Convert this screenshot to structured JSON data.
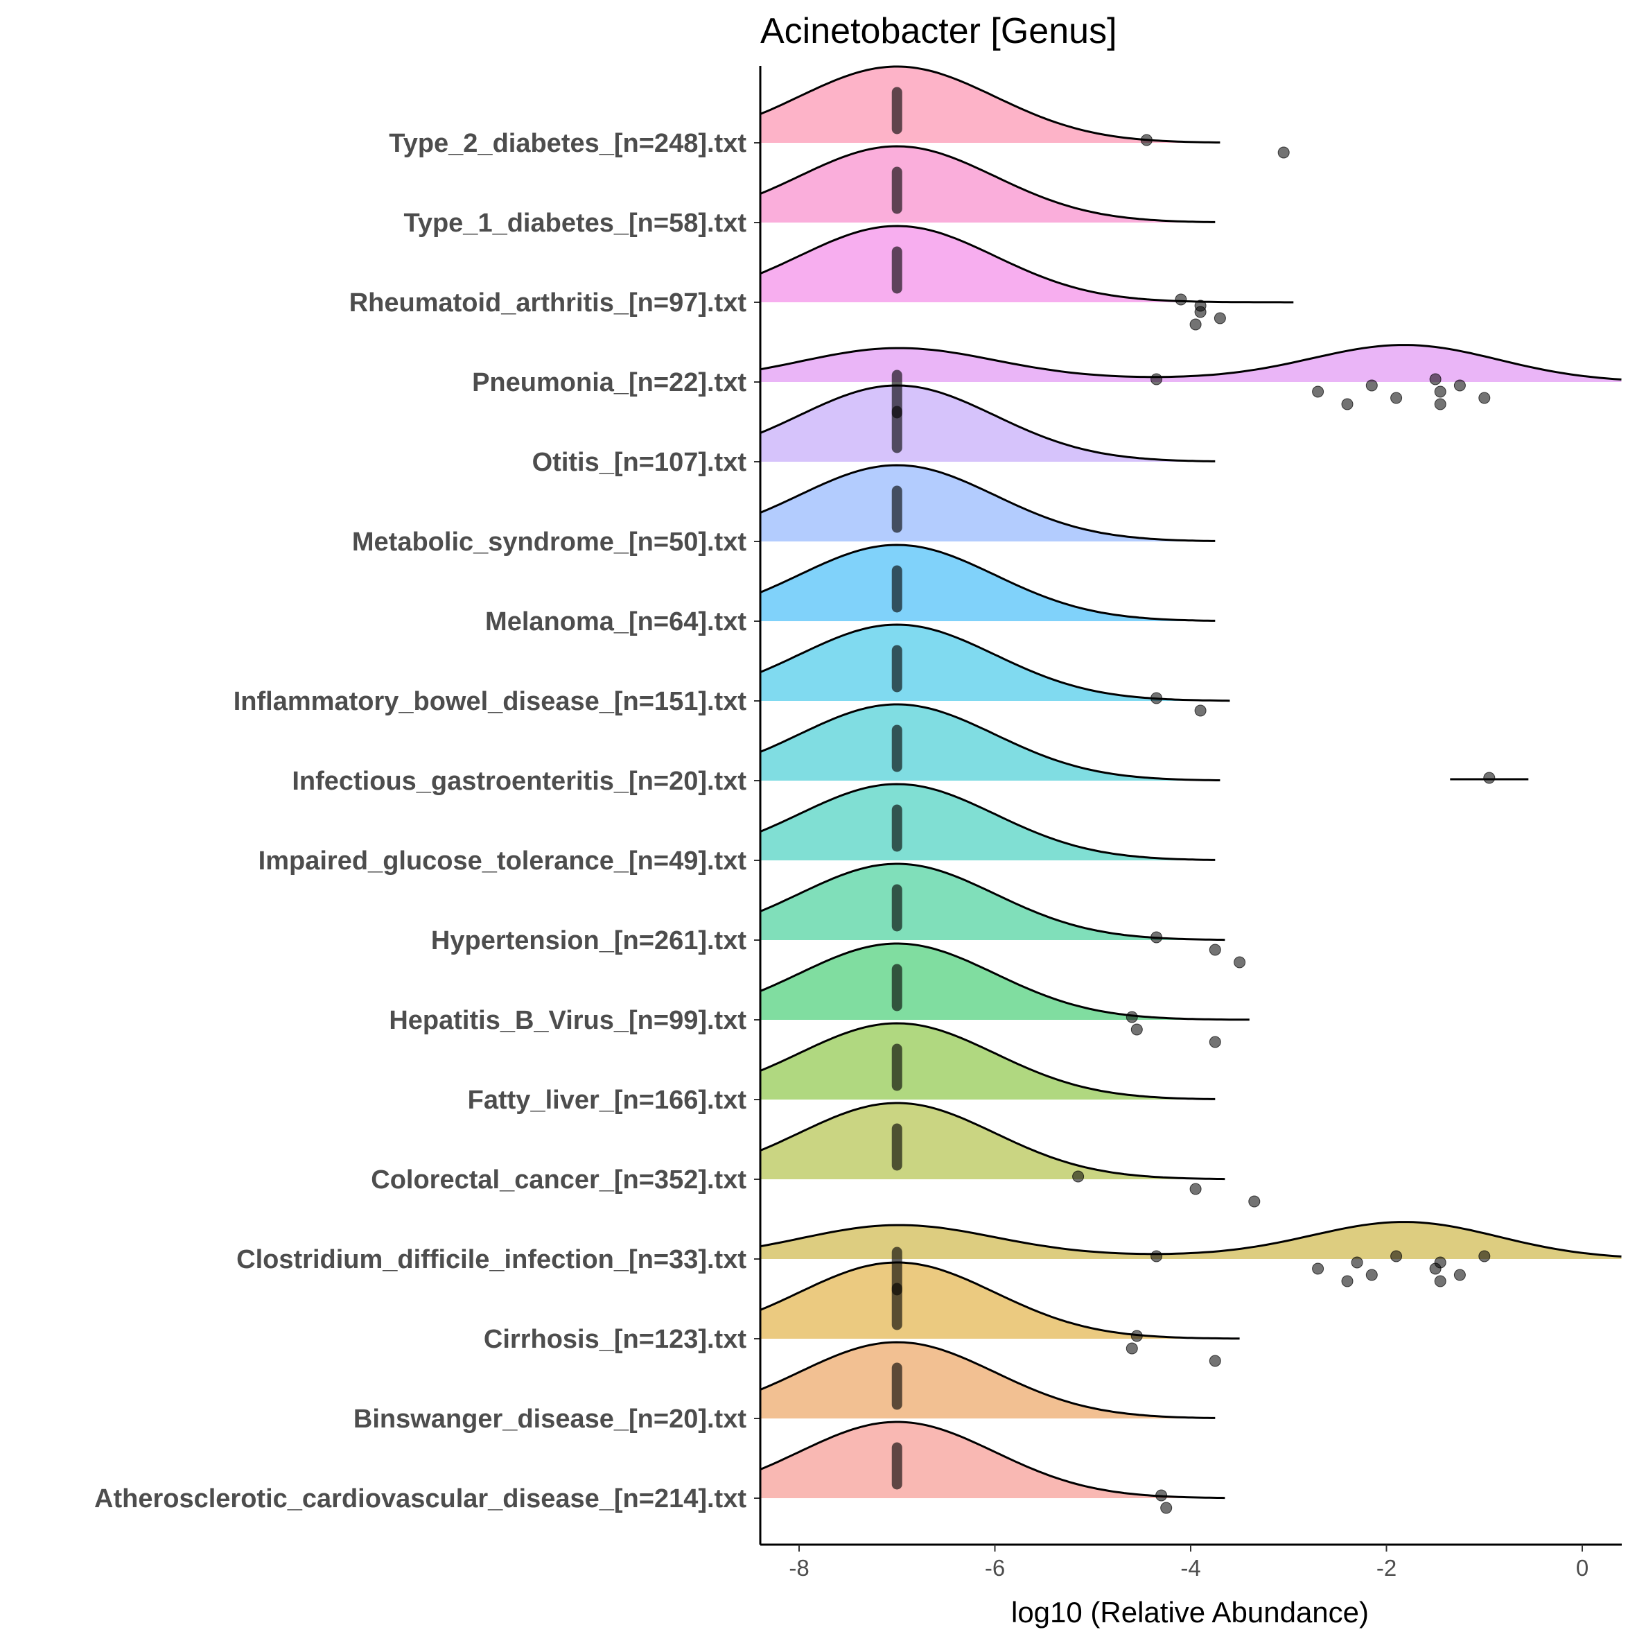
{
  "chart_data": {
    "type": "raincloud",
    "title": "Acinetobacter [Genus]",
    "xlabel": "log10 (Relative Abundance)",
    "ylabel": "",
    "xlim": [
      -8.4,
      0.4
    ],
    "xticks": [
      -8,
      -6,
      -4,
      -2,
      0
    ],
    "xtick_labels": [
      "-8",
      "-6",
      "-4",
      "-2",
      "0"
    ],
    "baseline_value": -7,
    "categories_top_to_bottom": [
      {
        "label": "Type_2_diabetes_[n=248].txt",
        "color": "#FDB3C8",
        "curve_end": -3.7,
        "shape": "single",
        "outliers": [
          -4.45,
          -3.05
        ]
      },
      {
        "label": "Type_1_diabetes_[n=58].txt",
        "color": "#FAAEDB",
        "curve_end": -3.75,
        "shape": "single",
        "outliers": []
      },
      {
        "label": "Rheumatoid_arthritis_[n=97].txt",
        "color": "#F7AEEF",
        "curve_end": -2.95,
        "shape": "single",
        "outliers": [
          -4.1,
          -3.9,
          -3.95,
          -3.9,
          -3.7
        ]
      },
      {
        "label": "Pneumonia_[n=22].txt",
        "color": "#EAB5F7",
        "curve_end": 0.4,
        "shape": "bimodal",
        "outliers": [
          -4.35,
          -2.7,
          -2.4,
          -2.15,
          -1.9,
          -1.5,
          -1.45,
          -1.45,
          -1.25,
          -1.0
        ]
      },
      {
        "label": "Otitis_[n=107].txt",
        "color": "#D6C3FB",
        "curve_end": -3.75,
        "shape": "single",
        "outliers": []
      },
      {
        "label": "Metabolic_syndrome_[n=50].txt",
        "color": "#B3CCFE",
        "curve_end": -3.75,
        "shape": "single",
        "outliers": []
      },
      {
        "label": "Melanoma_[n=64].txt",
        "color": "#80D2FA",
        "curve_end": -3.75,
        "shape": "single",
        "outliers": []
      },
      {
        "label": "Inflammatory_bowel_disease_[n=151].txt",
        "color": "#80DAF0",
        "curve_end": -3.6,
        "shape": "single",
        "outliers": [
          -4.35,
          -3.9
        ]
      },
      {
        "label": "Infectious_gastroenteritis_[n=20].txt",
        "color": "#80DDE2",
        "curve_end": -3.7,
        "shape": "single",
        "outliers": [
          -0.95
        ],
        "extra_segment": [
          -1.35,
          -0.55
        ]
      },
      {
        "label": "Impaired_glucose_tolerance_[n=49].txt",
        "color": "#80DFD3",
        "curve_end": -3.75,
        "shape": "single",
        "outliers": []
      },
      {
        "label": "Hypertension_[n=261].txt",
        "color": "#80DFBA",
        "curve_end": -3.65,
        "shape": "single",
        "outliers": [
          -4.35,
          -3.75,
          -3.5
        ]
      },
      {
        "label": "Hepatitis_B_Virus_[n=99].txt",
        "color": "#80DDA0",
        "curve_end": -3.4,
        "shape": "single",
        "outliers": [
          -4.6,
          -4.55,
          -3.75
        ]
      },
      {
        "label": "Fatty_liver_[n=166].txt",
        "color": "#B0D880",
        "curve_end": -3.75,
        "shape": "single",
        "outliers": []
      },
      {
        "label": "Colorectal_cancer_[n=352].txt",
        "color": "#CAD582",
        "curve_end": -3.65,
        "shape": "single",
        "outliers": [
          -5.15,
          -3.95,
          -3.35
        ]
      },
      {
        "label": "Clostridium_difficile_infection_[n=33].txt",
        "color": "#DDCD80",
        "curve_end": 0.4,
        "shape": "bimodal",
        "outliers": [
          -4.35,
          -2.7,
          -2.4,
          -2.3,
          -2.15,
          -1.9,
          -1.5,
          -1.45,
          -1.45,
          -1.25,
          -1.0
        ]
      },
      {
        "label": "Cirrhosis_[n=123].txt",
        "color": "#EBCA80",
        "curve_end": -3.5,
        "shape": "single",
        "outliers": [
          -4.55,
          -4.6,
          -3.75
        ]
      },
      {
        "label": "Binswanger_disease_[n=20].txt",
        "color": "#F2C092",
        "curve_end": -3.75,
        "shape": "single",
        "outliers": []
      },
      {
        "label": "Atherosclerotic_cardiovascular_disease_[n=214].txt",
        "color": "#F9B8B3",
        "curve_end": -3.65,
        "shape": "single",
        "outliers": [
          -4.3,
          -4.25
        ]
      }
    ]
  }
}
